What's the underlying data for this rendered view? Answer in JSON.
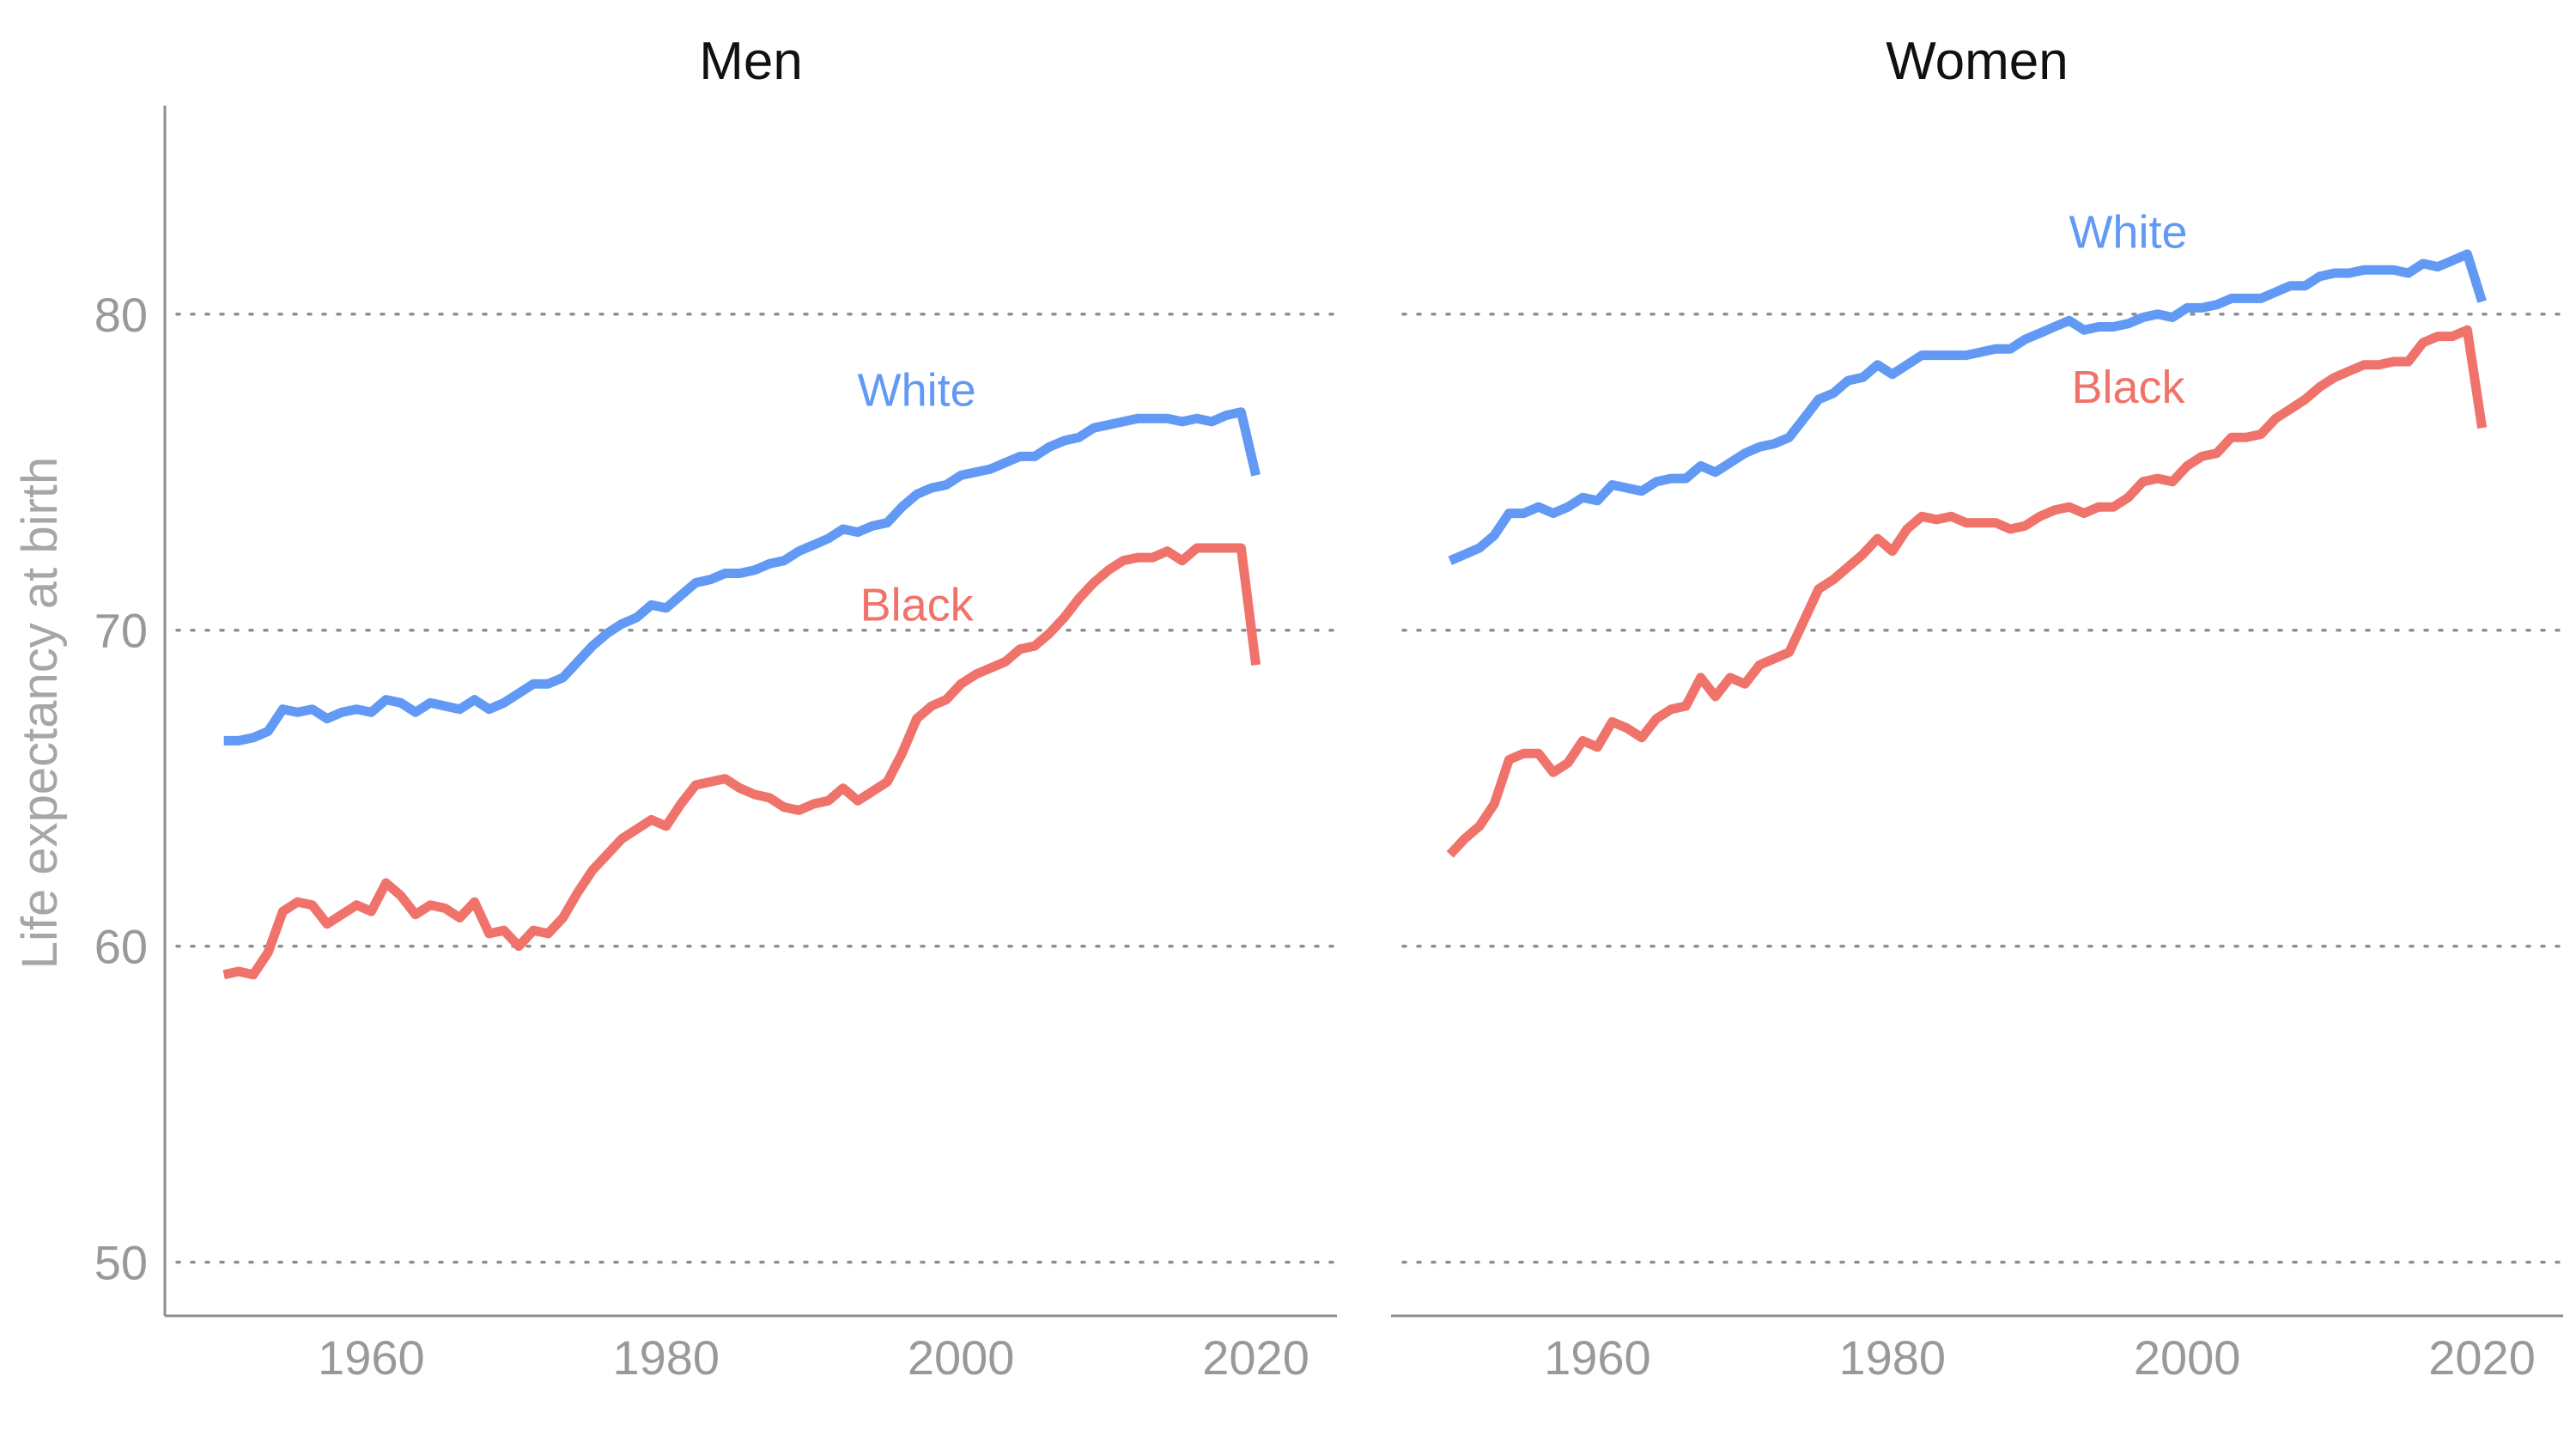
{
  "colors": {
    "White": "#6199f5",
    "Black": "#f0736b"
  },
  "chart_data": {
    "type": "line",
    "ylabel": "Life expectancy at birth",
    "xlabel": "",
    "ylim": [
      48.3,
      86.6
    ],
    "yticks": [
      50,
      60,
      70,
      80
    ],
    "xlim": [
      1946,
      2025.5
    ],
    "xticks": [
      1960,
      1980,
      2000,
      2020
    ],
    "grid": "horizontal dotted",
    "legend": "direct labels on lines",
    "facets": [
      {
        "title": "Men",
        "series": [
          {
            "name": "White",
            "x": [
              1950,
              1951,
              1952,
              1953,
              1954,
              1955,
              1956,
              1957,
              1958,
              1959,
              1960,
              1961,
              1962,
              1963,
              1964,
              1965,
              1966,
              1967,
              1968,
              1969,
              1970,
              1971,
              1972,
              1973,
              1974,
              1975,
              1976,
              1977,
              1978,
              1979,
              1980,
              1981,
              1982,
              1983,
              1984,
              1985,
              1986,
              1987,
              1988,
              1989,
              1990,
              1991,
              1992,
              1993,
              1994,
              1995,
              1996,
              1997,
              1998,
              1999,
              2000,
              2001,
              2002,
              2003,
              2004,
              2005,
              2006,
              2007,
              2008,
              2009,
              2010,
              2011,
              2012,
              2013,
              2014,
              2015,
              2016,
              2017,
              2018,
              2019,
              2020
            ],
            "y": [
              66.5,
              66.5,
              66.6,
              66.8,
              67.5,
              67.4,
              67.5,
              67.2,
              67.4,
              67.5,
              67.4,
              67.8,
              67.7,
              67.4,
              67.7,
              67.6,
              67.5,
              67.8,
              67.5,
              67.7,
              68.0,
              68.3,
              68.3,
              68.5,
              69.0,
              69.5,
              69.9,
              70.2,
              70.4,
              70.8,
              70.7,
              71.1,
              71.5,
              71.6,
              71.8,
              71.8,
              71.9,
              72.1,
              72.2,
              72.5,
              72.7,
              72.9,
              73.2,
              73.1,
              73.3,
              73.4,
              73.9,
              74.3,
              74.5,
              74.6,
              74.9,
              75.0,
              75.1,
              75.3,
              75.5,
              75.5,
              75.8,
              76.0,
              76.1,
              76.4,
              76.5,
              76.6,
              76.7,
              76.7,
              76.7,
              76.6,
              76.7,
              76.6,
              76.8,
              76.9,
              74.9
            ],
            "label": "White"
          },
          {
            "name": "Black",
            "x": [
              1950,
              1951,
              1952,
              1953,
              1954,
              1955,
              1956,
              1957,
              1958,
              1959,
              1960,
              1961,
              1962,
              1963,
              1964,
              1965,
              1966,
              1967,
              1968,
              1969,
              1970,
              1971,
              1972,
              1973,
              1974,
              1975,
              1976,
              1977,
              1978,
              1979,
              1980,
              1981,
              1982,
              1983,
              1984,
              1985,
              1986,
              1987,
              1988,
              1989,
              1990,
              1991,
              1992,
              1993,
              1994,
              1995,
              1996,
              1997,
              1998,
              1999,
              2000,
              2001,
              2002,
              2003,
              2004,
              2005,
              2006,
              2007,
              2008,
              2009,
              2010,
              2011,
              2012,
              2013,
              2014,
              2015,
              2016,
              2017,
              2018,
              2019,
              2020
            ],
            "y": [
              59.1,
              59.2,
              59.1,
              59.8,
              61.1,
              61.4,
              61.3,
              60.7,
              61.0,
              61.3,
              61.1,
              62.0,
              61.6,
              61.0,
              61.3,
              61.2,
              60.9,
              61.4,
              60.4,
              60.5,
              60.0,
              60.5,
              60.4,
              60.9,
              61.7,
              62.4,
              62.9,
              63.4,
              63.7,
              64.0,
              63.8,
              64.5,
              65.1,
              65.2,
              65.3,
              65.0,
              64.8,
              64.7,
              64.4,
              64.3,
              64.5,
              64.6,
              65.0,
              64.6,
              64.9,
              65.2,
              66.1,
              67.2,
              67.6,
              67.8,
              68.3,
              68.6,
              68.8,
              69.0,
              69.4,
              69.5,
              69.9,
              70.4,
              71.0,
              71.5,
              71.9,
              72.2,
              72.3,
              72.3,
              72.5,
              72.2,
              72.6,
              72.6,
              72.6,
              72.6,
              68.9
            ],
            "label": "Black"
          }
        ]
      },
      {
        "title": "Women",
        "series": [
          {
            "name": "White",
            "x": [
              1950,
              1951,
              1952,
              1953,
              1954,
              1955,
              1956,
              1957,
              1958,
              1959,
              1960,
              1961,
              1962,
              1963,
              1964,
              1965,
              1966,
              1967,
              1968,
              1969,
              1970,
              1971,
              1972,
              1973,
              1974,
              1975,
              1976,
              1977,
              1978,
              1979,
              1980,
              1981,
              1982,
              1983,
              1984,
              1985,
              1986,
              1987,
              1988,
              1989,
              1990,
              1991,
              1992,
              1993,
              1994,
              1995,
              1996,
              1997,
              1998,
              1999,
              2000,
              2001,
              2002,
              2003,
              2004,
              2005,
              2006,
              2007,
              2008,
              2009,
              2010,
              2011,
              2012,
              2013,
              2014,
              2015,
              2016,
              2017,
              2018,
              2019,
              2020
            ],
            "y": [
              72.2,
              72.4,
              72.6,
              73.0,
              73.7,
              73.7,
              73.9,
              73.7,
              73.9,
              74.2,
              74.1,
              74.6,
              74.5,
              74.4,
              74.7,
              74.8,
              74.8,
              75.2,
              75.0,
              75.3,
              75.6,
              75.8,
              75.9,
              76.1,
              76.7,
              77.3,
              77.5,
              77.9,
              78.0,
              78.4,
              78.1,
              78.4,
              78.7,
              78.7,
              78.7,
              78.7,
              78.8,
              78.9,
              78.9,
              79.2,
              79.4,
              79.6,
              79.8,
              79.5,
              79.6,
              79.6,
              79.7,
              79.9,
              80.0,
              79.9,
              80.2,
              80.2,
              80.3,
              80.5,
              80.5,
              80.5,
              80.7,
              80.9,
              80.9,
              81.2,
              81.3,
              81.3,
              81.4,
              81.4,
              81.4,
              81.3,
              81.6,
              81.5,
              81.7,
              81.9,
              80.4
            ],
            "label": "White"
          },
          {
            "name": "Black",
            "x": [
              1950,
              1951,
              1952,
              1953,
              1954,
              1955,
              1956,
              1957,
              1958,
              1959,
              1960,
              1961,
              1962,
              1963,
              1964,
              1965,
              1966,
              1967,
              1968,
              1969,
              1970,
              1971,
              1972,
              1973,
              1974,
              1975,
              1976,
              1977,
              1978,
              1979,
              1980,
              1981,
              1982,
              1983,
              1984,
              1985,
              1986,
              1987,
              1988,
              1989,
              1990,
              1991,
              1992,
              1993,
              1994,
              1995,
              1996,
              1997,
              1998,
              1999,
              2000,
              2001,
              2002,
              2003,
              2004,
              2005,
              2006,
              2007,
              2008,
              2009,
              2010,
              2011,
              2012,
              2013,
              2014,
              2015,
              2016,
              2017,
              2018,
              2019,
              2020
            ],
            "y": [
              62.9,
              63.4,
              63.8,
              64.5,
              65.9,
              66.1,
              66.1,
              65.5,
              65.8,
              66.5,
              66.3,
              67.1,
              66.9,
              66.6,
              67.2,
              67.5,
              67.6,
              68.5,
              67.9,
              68.5,
              68.3,
              68.9,
              69.1,
              69.3,
              70.3,
              71.3,
              71.6,
              72.0,
              72.4,
              72.9,
              72.5,
              73.2,
              73.6,
              73.5,
              73.6,
              73.4,
              73.4,
              73.4,
              73.2,
              73.3,
              73.6,
              73.8,
              73.9,
              73.7,
              73.9,
              73.9,
              74.2,
              74.7,
              74.8,
              74.7,
              75.2,
              75.5,
              75.6,
              76.1,
              76.1,
              76.2,
              76.7,
              77.0,
              77.3,
              77.7,
              78.0,
              78.2,
              78.4,
              78.4,
              78.5,
              78.5,
              79.1,
              79.3,
              79.3,
              79.5,
              76.4
            ],
            "label": "Black"
          }
        ]
      }
    ]
  }
}
